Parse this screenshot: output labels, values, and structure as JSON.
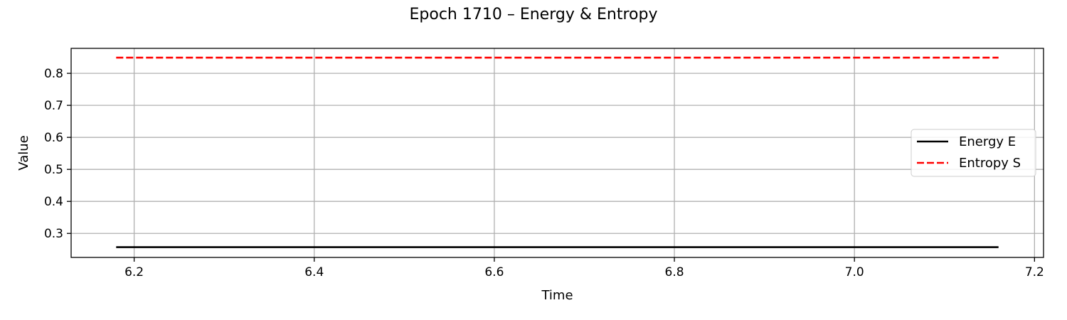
{
  "chart_data": {
    "type": "line",
    "title": "Epoch 1710 – Energy & Entropy",
    "xlabel": "Time",
    "ylabel": "Value",
    "xlim": [
      6.13,
      7.21
    ],
    "ylim": [
      0.225,
      0.878
    ],
    "xticks": [
      6.2,
      6.4,
      6.6,
      6.8,
      7.0,
      7.2
    ],
    "xtick_labels": [
      "6.2",
      "6.4",
      "6.6",
      "6.8",
      "7.0",
      "7.2"
    ],
    "yticks": [
      0.3,
      0.4,
      0.5,
      0.6,
      0.7,
      0.8
    ],
    "ytick_labels": [
      "0.3",
      "0.4",
      "0.5",
      "0.6",
      "0.7",
      "0.8"
    ],
    "grid": true,
    "legend_position": "center-right",
    "series": [
      {
        "name": "Energy E",
        "color": "#000000",
        "style": "solid",
        "x": [
          6.18,
          7.16
        ],
        "y": [
          0.257,
          0.257
        ]
      },
      {
        "name": "Entropy S",
        "color": "#ff0000",
        "style": "dashed",
        "x": [
          6.18,
          7.16
        ],
        "y": [
          0.849,
          0.849
        ]
      }
    ]
  }
}
